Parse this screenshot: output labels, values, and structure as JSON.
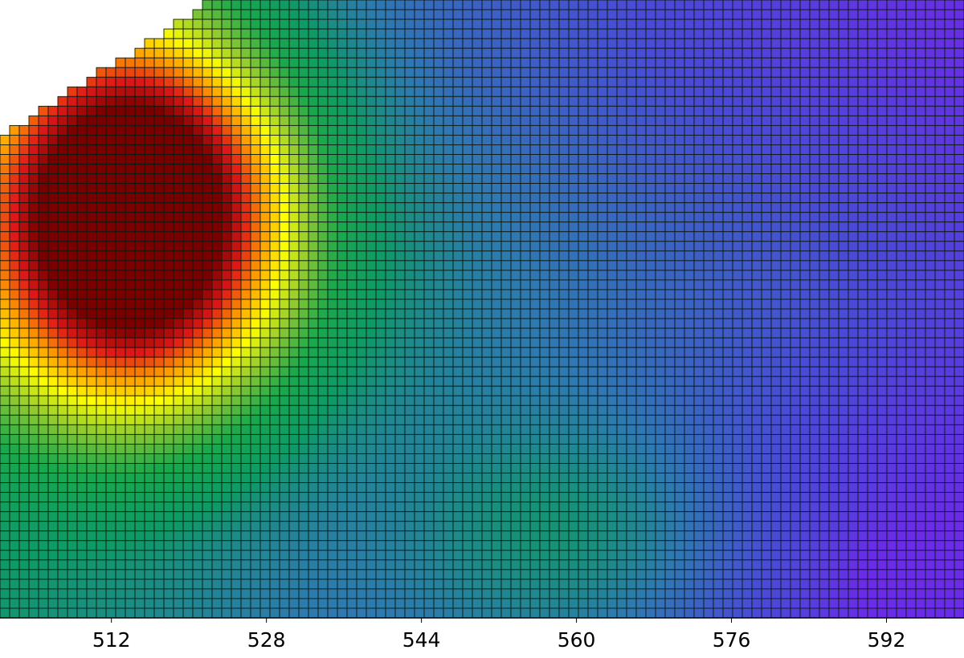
{
  "chart_data": {
    "type": "heatmap",
    "title": "",
    "xlabel": "",
    "ylabel": "",
    "x_ticks": [
      512,
      528,
      544,
      560,
      576,
      592
    ],
    "xlim": [
      500.5,
      600
    ],
    "grid": true,
    "grid_columns": 100,
    "grid_rows": 64,
    "colormap": [
      "#6a2ce6",
      "#4a4ad6",
      "#2f78b2",
      "#0e9a66",
      "#1aa84c",
      "#8cc832",
      "#ffff00",
      "#ff9a00",
      "#e01818",
      "#7a0000"
    ],
    "value_range": [
      0,
      1
    ],
    "hotspots": [
      {
        "x": 514.5,
        "row": 21.5,
        "intensity": 1.0
      },
      {
        "x": 560,
        "row": 55,
        "intensity": 0.4
      }
    ],
    "cold_region": {
      "x": 595,
      "row": 60
    },
    "cutout": "top-left diagonal (staircase) missing cells"
  }
}
